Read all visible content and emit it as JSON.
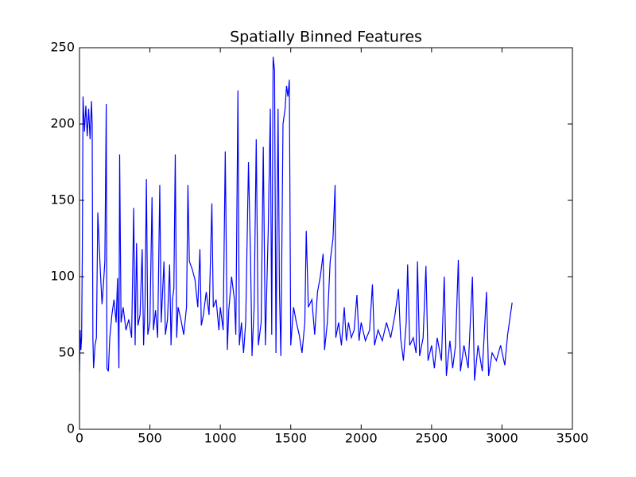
{
  "chart_data": {
    "type": "line",
    "title": "Spatially Binned Features",
    "color": "#0000ff",
    "x": [
      0,
      5,
      10,
      15,
      20,
      25,
      35,
      45,
      55,
      65,
      75,
      85,
      90,
      95,
      100,
      110,
      120,
      130,
      140,
      150,
      160,
      170,
      180,
      190,
      195,
      205,
      215,
      230,
      245,
      260,
      270,
      280,
      285,
      295,
      310,
      330,
      350,
      370,
      385,
      395,
      405,
      415,
      430,
      445,
      455,
      465,
      475,
      485,
      500,
      515,
      525,
      540,
      555,
      570,
      580,
      600,
      610,
      625,
      640,
      650,
      660,
      670,
      680,
      690,
      700,
      720,
      740,
      760,
      770,
      780,
      800,
      820,
      840,
      855,
      865,
      880,
      900,
      920,
      940,
      950,
      970,
      990,
      1000,
      1020,
      1035,
      1050,
      1060,
      1080,
      1100,
      1110,
      1125,
      1135,
      1150,
      1165,
      1180,
      1200,
      1215,
      1225,
      1240,
      1255,
      1270,
      1290,
      1305,
      1320,
      1340,
      1355,
      1365,
      1375,
      1385,
      1395,
      1410,
      1420,
      1430,
      1445,
      1460,
      1470,
      1480,
      1490,
      1500,
      1520,
      1540,
      1560,
      1580,
      1600,
      1610,
      1625,
      1650,
      1670,
      1690,
      1710,
      1730,
      1740,
      1760,
      1780,
      1800,
      1815,
      1820,
      1840,
      1860,
      1880,
      1895,
      1910,
      1930,
      1950,
      1970,
      1985,
      2000,
      2030,
      2060,
      2080,
      2095,
      2120,
      2150,
      2180,
      2210,
      2240,
      2265,
      2280,
      2300,
      2320,
      2330,
      2345,
      2370,
      2390,
      2400,
      2415,
      2440,
      2460,
      2475,
      2500,
      2520,
      2540,
      2570,
      2590,
      2605,
      2630,
      2650,
      2670,
      2690,
      2705,
      2730,
      2760,
      2790,
      2805,
      2830,
      2860,
      2890,
      2905,
      2930,
      2960,
      2990,
      3020,
      3040,
      3060,
      3072
    ],
    "values": [
      38,
      65,
      52,
      60,
      115,
      218,
      195,
      212,
      192,
      210,
      190,
      215,
      200,
      60,
      40,
      55,
      60,
      142,
      120,
      100,
      82,
      95,
      110,
      213,
      40,
      38,
      60,
      75,
      85,
      70,
      99,
      40,
      180,
      70,
      80,
      65,
      72,
      60,
      145,
      55,
      122,
      68,
      75,
      118,
      55,
      80,
      164,
      62,
      70,
      152,
      65,
      78,
      60,
      160,
      70,
      110,
      62,
      72,
      108,
      55,
      85,
      92,
      180,
      60,
      80,
      72,
      62,
      80,
      160,
      110,
      105,
      98,
      80,
      118,
      68,
      75,
      90,
      75,
      148,
      80,
      85,
      65,
      80,
      65,
      182,
      52,
      78,
      100,
      85,
      62,
      222,
      55,
      70,
      50,
      70,
      175,
      110,
      48,
      80,
      190,
      55,
      70,
      185,
      55,
      130,
      210,
      62,
      244,
      235,
      50,
      210,
      90,
      48,
      200,
      210,
      225,
      218,
      229,
      55,
      80,
      70,
      62,
      50,
      70,
      130,
      80,
      85,
      62,
      90,
      100,
      115,
      52,
      70,
      110,
      125,
      160,
      60,
      70,
      55,
      80,
      58,
      70,
      60,
      65,
      88,
      58,
      70,
      58,
      65,
      95,
      55,
      65,
      58,
      70,
      60,
      75,
      92,
      60,
      45,
      70,
      108,
      55,
      60,
      50,
      110,
      48,
      60,
      107,
      45,
      55,
      40,
      60,
      45,
      100,
      35,
      58,
      40,
      55,
      111,
      38,
      55,
      40,
      100,
      32,
      55,
      38,
      90,
      35,
      50,
      45,
      55,
      42,
      62,
      75,
      83
    ],
    "xlim": [
      0,
      3500
    ],
    "xticks": [
      0,
      500,
      1000,
      1500,
      2000,
      2500,
      3000,
      3500
    ],
    "ylim": [
      0,
      250
    ],
    "yticks": [
      0,
      50,
      100,
      150,
      200,
      250
    ]
  }
}
